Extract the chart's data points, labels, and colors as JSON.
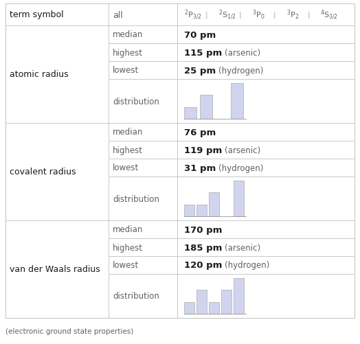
{
  "title_row": {
    "col1": "term symbol",
    "col2": "all",
    "term_labels": [
      "$^2\\mathrm{P}_{3/2}$",
      "$^2\\mathrm{S}_{1/2}$",
      "$^3\\mathrm{P}_0$",
      "$^3\\mathrm{P}_2$",
      "$^4\\mathrm{S}_{3/2}$"
    ]
  },
  "sections": [
    {
      "label": "atomic radius",
      "rows": [
        {
          "key": "median",
          "value_bold": "70 pm",
          "value_plain": ""
        },
        {
          "key": "highest",
          "value_bold": "115 pm",
          "value_plain": "(arsenic)"
        },
        {
          "key": "lowest",
          "value_bold": "25 pm",
          "value_plain": "(hydrogen)"
        },
        {
          "key": "distribution",
          "bars": [
            1,
            2,
            0,
            3
          ]
        }
      ]
    },
    {
      "label": "covalent radius",
      "rows": [
        {
          "key": "median",
          "value_bold": "76 pm",
          "value_plain": ""
        },
        {
          "key": "highest",
          "value_bold": "119 pm",
          "value_plain": "(arsenic)"
        },
        {
          "key": "lowest",
          "value_bold": "31 pm",
          "value_plain": "(hydrogen)"
        },
        {
          "key": "distribution",
          "bars": [
            1,
            1,
            2,
            0,
            3
          ]
        }
      ]
    },
    {
      "label": "van der Waals radius",
      "rows": [
        {
          "key": "median",
          "value_bold": "170 pm",
          "value_plain": ""
        },
        {
          "key": "highest",
          "value_bold": "185 pm",
          "value_plain": "(arsenic)"
        },
        {
          "key": "lowest",
          "value_bold": "120 pm",
          "value_plain": "(hydrogen)"
        },
        {
          "key": "distribution",
          "bars": [
            1,
            2,
            1,
            2,
            3
          ]
        }
      ]
    }
  ],
  "footer": "(electronic ground state properties)",
  "bg_color": "#ffffff",
  "grid_color": "#c8c8c8",
  "hist_bar_color": "#d0d4ee",
  "hist_bar_edge": "#aaaaaa",
  "text_dark": "#1a1a1a",
  "text_gray": "#606060",
  "sep_color": "#aaaaaa"
}
